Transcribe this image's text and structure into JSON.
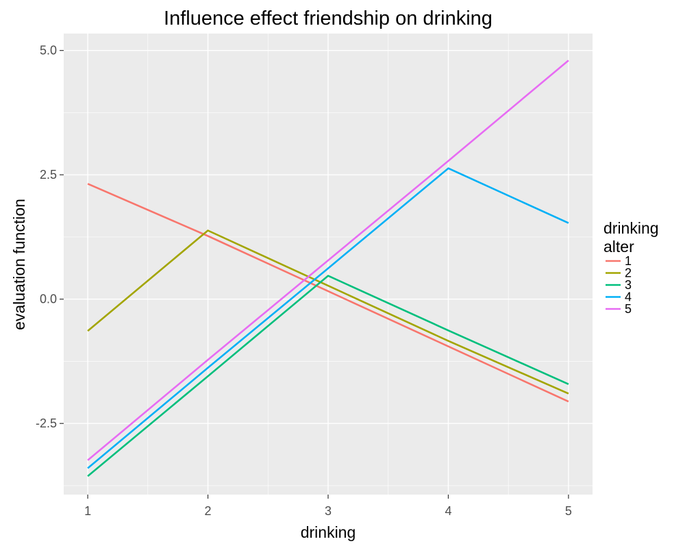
{
  "chart_data": {
    "type": "line",
    "title": "Influence effect friendship on drinking",
    "xlabel": "drinking",
    "ylabel": "evaluation function",
    "x": [
      1,
      2,
      3,
      4,
      5
    ],
    "xlim": [
      0.8,
      5.2
    ],
    "ylim": [
      -3.93,
      5.34
    ],
    "x_ticks": [
      "1",
      "2",
      "3",
      "4",
      "5"
    ],
    "y_ticks": [
      "-2.5",
      "0.0",
      "2.5",
      "5.0"
    ],
    "y_tick_values": [
      -2.5,
      0.0,
      2.5,
      5.0
    ],
    "grid": true,
    "legend": {
      "title_line1": "drinking",
      "title_line2": "alter",
      "placement": "right"
    },
    "series": [
      {
        "name": "1",
        "color": "#F8766D",
        "values": [
          2.32,
          1.27,
          0.16,
          -0.95,
          -2.06
        ]
      },
      {
        "name": "2",
        "color": "#A3A500",
        "values": [
          -0.64,
          1.38,
          0.27,
          -0.84,
          -1.9
        ]
      },
      {
        "name": "3",
        "color": "#00BF7D",
        "values": [
          -3.56,
          -1.55,
          0.47,
          -0.63,
          -1.71
        ]
      },
      {
        "name": "4",
        "color": "#00B0F6",
        "values": [
          -3.4,
          -1.38,
          0.62,
          2.63,
          1.53
        ]
      },
      {
        "name": "5",
        "color": "#E76BF3",
        "values": [
          -3.24,
          -1.22,
          0.78,
          2.78,
          4.8
        ]
      }
    ]
  }
}
